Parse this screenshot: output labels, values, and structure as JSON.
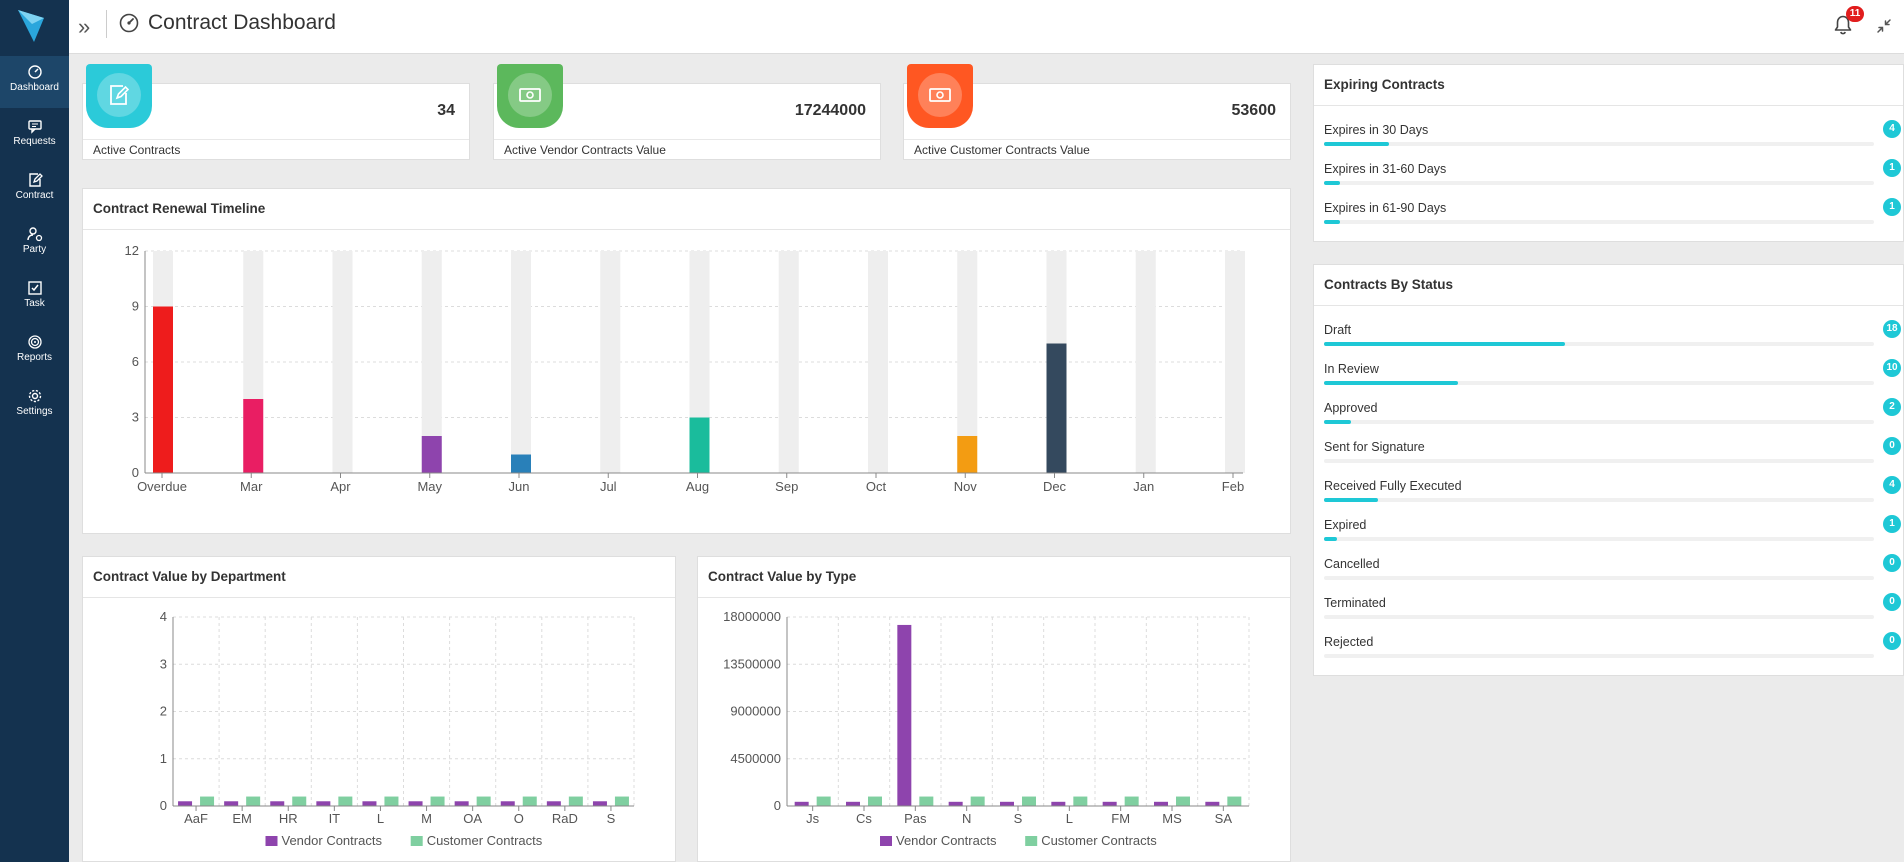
{
  "header": {
    "title": "Contract Dashboard",
    "notification_count": "11"
  },
  "sidebar": {
    "items": [
      {
        "label": "Dashboard",
        "icon": "gauge-icon"
      },
      {
        "label": "Requests",
        "icon": "message-icon"
      },
      {
        "label": "Contract",
        "icon": "edit-document-icon"
      },
      {
        "label": "Party",
        "icon": "user-gear-icon"
      },
      {
        "label": "Task",
        "icon": "checkbox-icon"
      },
      {
        "label": "Reports",
        "icon": "fingerprint-icon"
      },
      {
        "label": "Settings",
        "icon": "gear-icon"
      }
    ]
  },
  "stats": [
    {
      "value": "34",
      "label": "Active Contracts",
      "color": "#2bcad9",
      "icon": "edit-document-icon"
    },
    {
      "value": "17244000",
      "label": "Active Vendor Contracts Value",
      "color": "#5cb85c",
      "icon": "money-icon"
    },
    {
      "value": "53600",
      "label": "Active Customer Contracts Value",
      "color": "#ff5722",
      "icon": "money-icon"
    }
  ],
  "expiring": {
    "title": "Expiring Contracts",
    "max": 34,
    "items": [
      {
        "label": "Expires in 30 Days",
        "count": "4",
        "value": 4
      },
      {
        "label": "Expires in 31-60 Days",
        "count": "1",
        "value": 1
      },
      {
        "label": "Expires in 61-90 Days",
        "count": "1",
        "value": 1
      }
    ]
  },
  "status": {
    "title": "Contracts By Status",
    "max": 41,
    "items": [
      {
        "label": "Draft",
        "count": "18",
        "value": 18
      },
      {
        "label": "In Review",
        "count": "10",
        "value": 10
      },
      {
        "label": "Approved",
        "count": "2",
        "value": 2
      },
      {
        "label": "Sent for Signature",
        "count": "0",
        "value": 0
      },
      {
        "label": "Received Fully Executed",
        "count": "4",
        "value": 4
      },
      {
        "label": "Expired",
        "count": "1",
        "value": 1
      },
      {
        "label": "Cancelled",
        "count": "0",
        "value": 0
      },
      {
        "label": "Terminated",
        "count": "0",
        "value": 0
      },
      {
        "label": "Rejected",
        "count": "0",
        "value": 0
      }
    ]
  },
  "chart_data": [
    {
      "type": "bar",
      "title": "Contract Renewal Timeline",
      "categories": [
        "Overdue",
        "Mar",
        "Apr",
        "May",
        "Jun",
        "Jul",
        "Aug",
        "Sep",
        "Oct",
        "Nov",
        "Dec",
        "Jan",
        "Feb"
      ],
      "values": [
        9,
        4,
        0,
        2,
        1,
        0,
        3,
        0,
        0,
        2,
        7,
        0,
        0
      ],
      "colors": [
        "#ee1c1c",
        "#e91e63",
        "#9e9e9e",
        "#8e44ad",
        "#2980b9",
        "#9e9e9e",
        "#1abc9c",
        "#9e9e9e",
        "#9e9e9e",
        "#f39c12",
        "#34495e",
        "#9e9e9e",
        "#9e9e9e"
      ],
      "ylim": [
        0,
        12
      ],
      "yticks": [
        "0",
        "3",
        "6",
        "9",
        "12"
      ],
      "grid": true
    },
    {
      "type": "bar",
      "title": "Contract Value by Department",
      "categories": [
        "AaF",
        "EM",
        "HR",
        "IT",
        "L",
        "M",
        "OA",
        "O",
        "RaD",
        "S"
      ],
      "series": [
        {
          "name": "Vendor Contracts",
          "color": "#8e44ad",
          "values": [
            0.1,
            0.1,
            0.1,
            0.1,
            0.1,
            0.1,
            0.1,
            0.1,
            0.1,
            0.1
          ]
        },
        {
          "name": "Customer Contracts",
          "color": "#7fcfa0",
          "values": [
            0.2,
            0.2,
            0.2,
            0.2,
            0.2,
            0.2,
            0.2,
            0.2,
            0.2,
            0.2
          ]
        }
      ],
      "ylim": [
        0,
        4
      ],
      "yticks": [
        "0",
        "1",
        "2",
        "3",
        "4"
      ],
      "legend": "bottom",
      "grid": true
    },
    {
      "type": "bar",
      "title": "Contract Value by Type",
      "categories": [
        "Js",
        "Cs",
        "Pas",
        "N",
        "S",
        "L",
        "FM",
        "MS",
        "SA"
      ],
      "series": [
        {
          "name": "Vendor Contracts",
          "color": "#8e44ad",
          "values": [
            400000,
            400000,
            17244000,
            400000,
            400000,
            400000,
            400000,
            400000,
            400000
          ]
        },
        {
          "name": "Customer Contracts",
          "color": "#7fcfa0",
          "values": [
            900000,
            900000,
            900000,
            900000,
            900000,
            900000,
            900000,
            900000,
            900000
          ]
        }
      ],
      "ylim": [
        0,
        18000000
      ],
      "yticks": [
        "0",
        "4500000",
        "9000000",
        "13500000",
        "18000000"
      ],
      "legend": "bottom",
      "grid": true
    }
  ]
}
